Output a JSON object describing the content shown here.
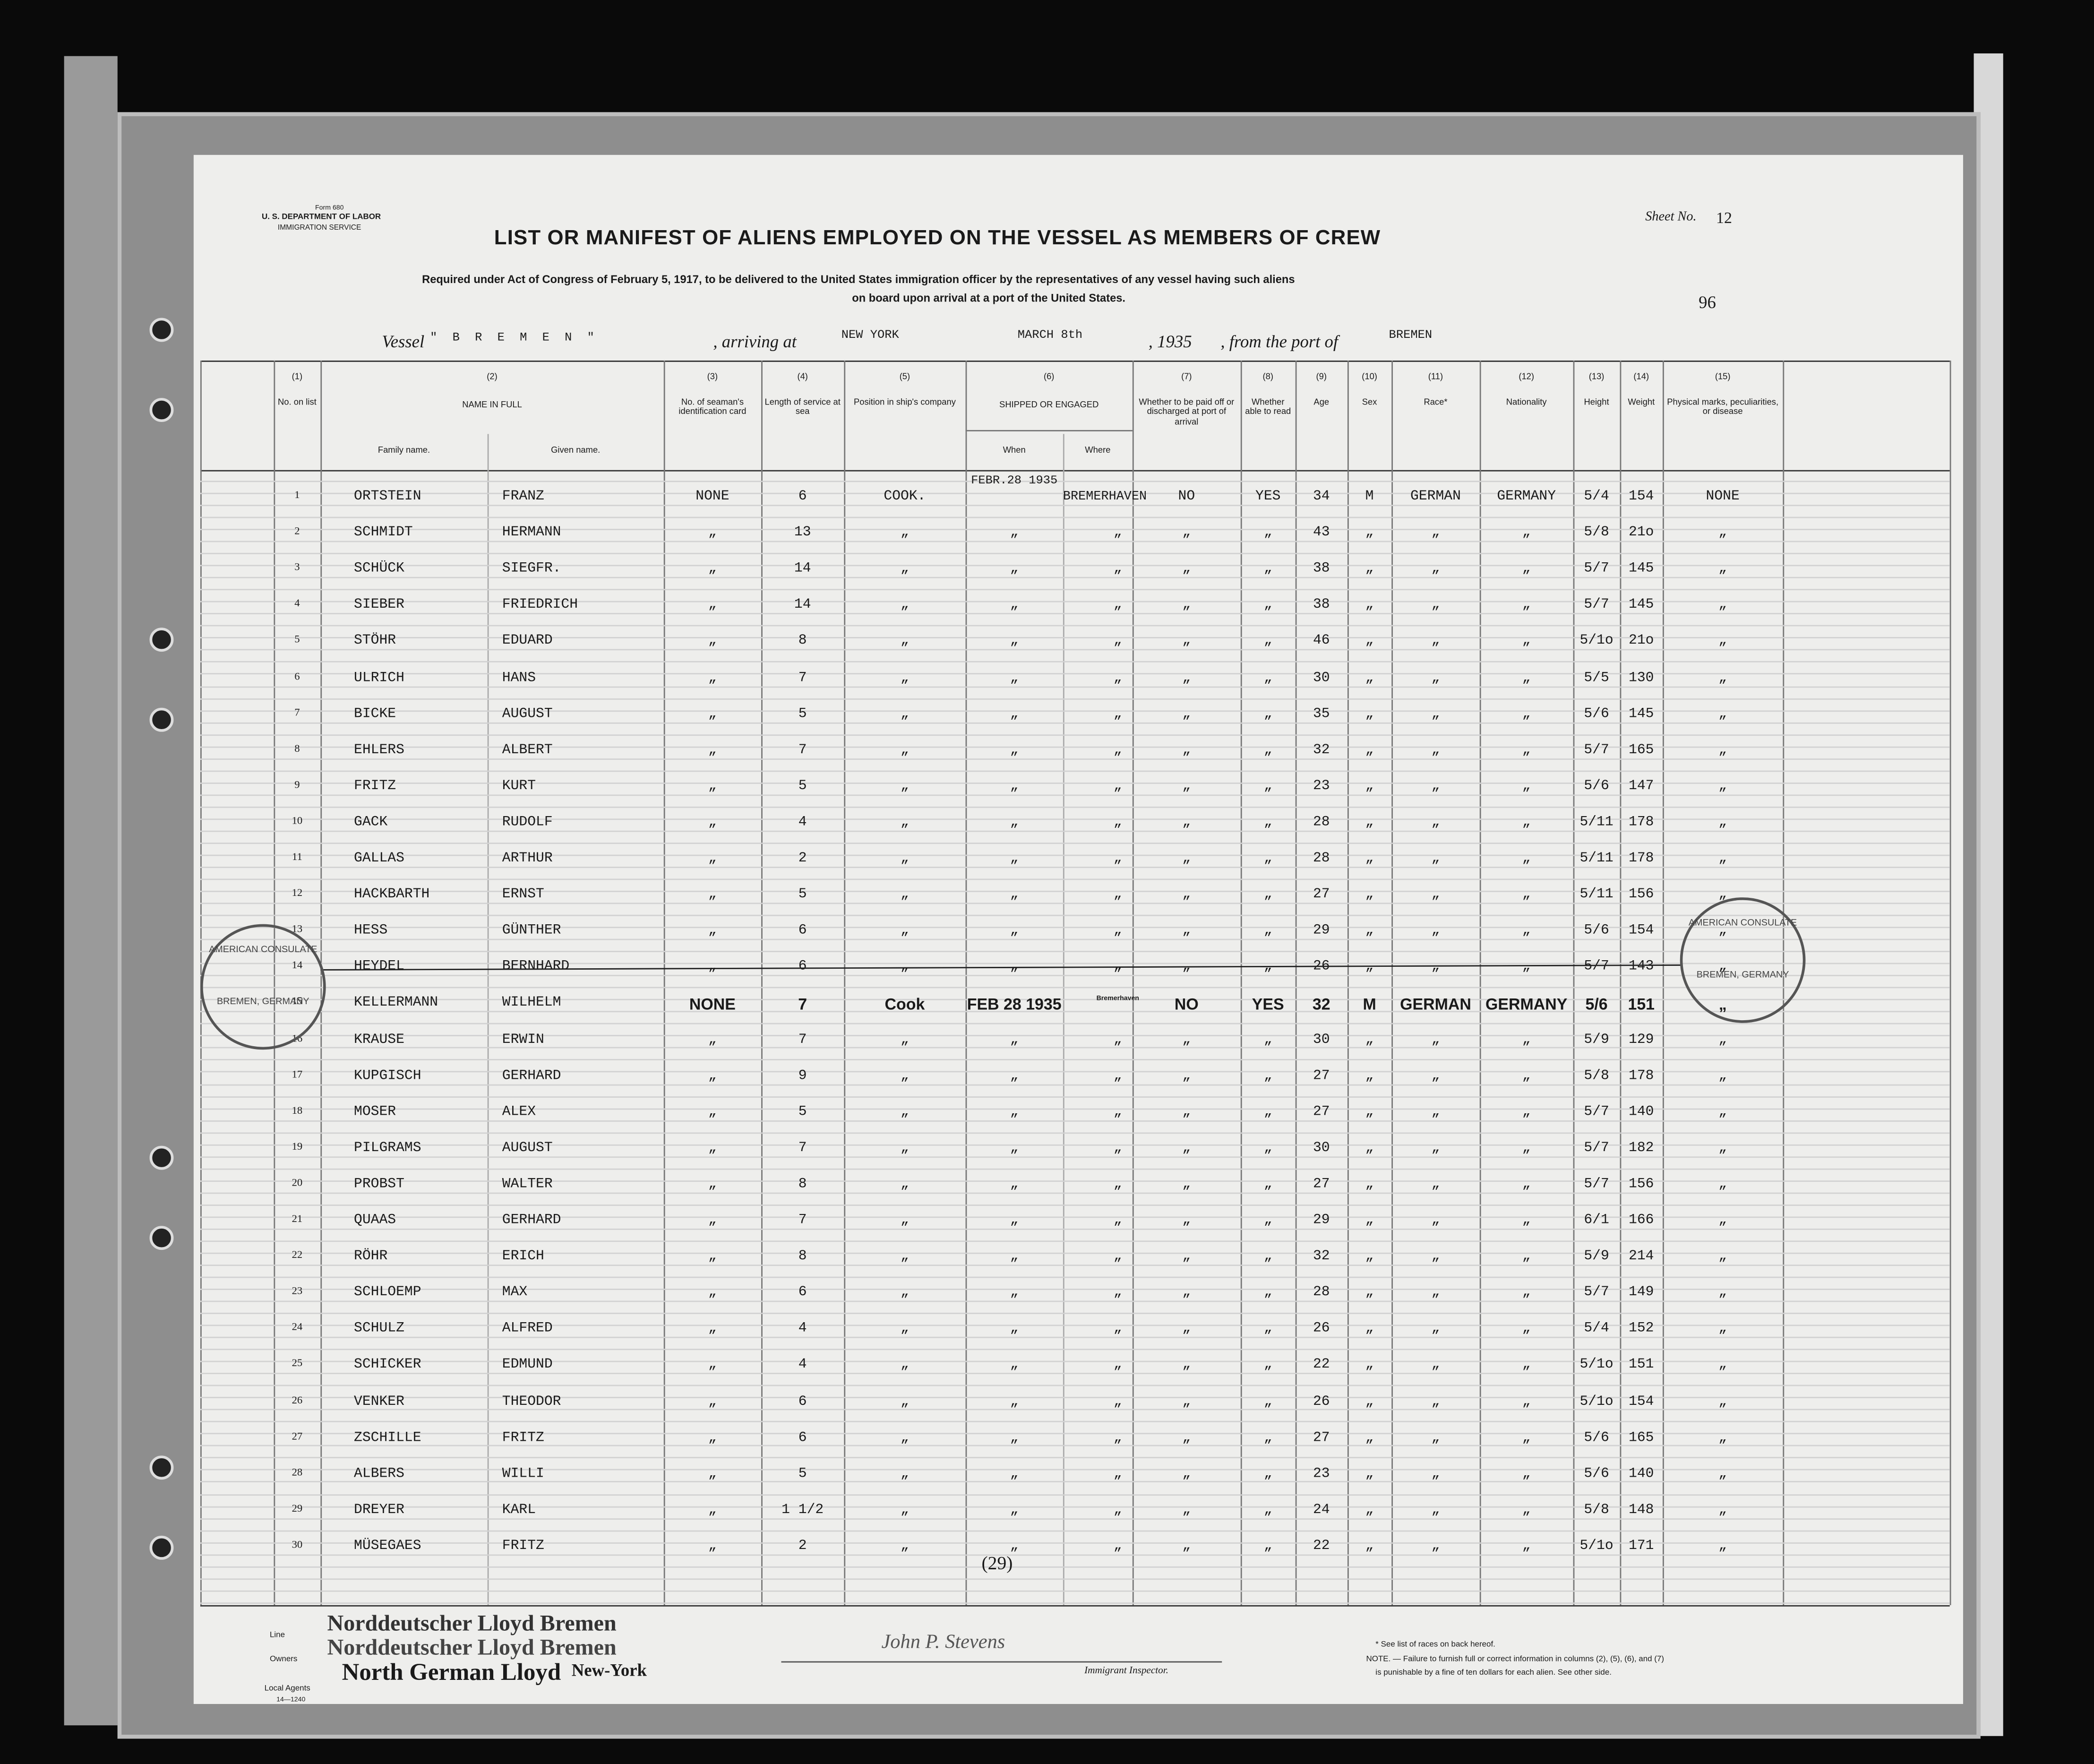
{
  "header": {
    "form": "Form 680",
    "department": "U. S. DEPARTMENT OF LABOR",
    "service": "IMMIGRATION SERVICE",
    "title": "LIST OR MANIFEST OF ALIENS EMPLOYED ON THE VESSEL AS MEMBERS OF CREW",
    "subtitle_1": "Required under Act of Congress of February 5, 1917, to be delivered to the United States immigration officer by the representatives of any vessel having such aliens",
    "subtitle_2": "on board upon arrival at a port of the United States.",
    "sheet_label": "Sheet No.",
    "sheet_number": "12",
    "page_mark": "96"
  },
  "vessel": {
    "vessel_label": "Vessel",
    "vessel": "\" B R E M E N \"",
    "arriving_label": ", arriving at",
    "port": "NEW YORK",
    "date": "MARCH  8th",
    "year": ", 1935",
    "from_label": ", from the port of",
    "from_port": "BREMEN"
  },
  "columns": [
    {
      "number": "(1)",
      "label": "No. on list"
    },
    {
      "number": "(2)",
      "label": "NAME IN FULL",
      "sub": [
        "Family name.",
        "Given name."
      ]
    },
    {
      "number": "(3)",
      "label": "No. of seaman's identification card"
    },
    {
      "number": "(4)",
      "label": "Length of service at sea"
    },
    {
      "number": "(5)",
      "label": "Position in ship's company"
    },
    {
      "number": "(6)",
      "label": "SHIPPED OR ENGAGED",
      "sub": [
        "When",
        "Where"
      ]
    },
    {
      "number": "(7)",
      "label": "Whether to be paid off or discharged at port of arrival"
    },
    {
      "number": "(8)",
      "label": "Whether able to read"
    },
    {
      "number": "(9)",
      "label": "Age"
    },
    {
      "number": "(10)",
      "label": "Sex"
    },
    {
      "number": "(11)",
      "label": "Race*"
    },
    {
      "number": "(12)",
      "label": "Nationality"
    },
    {
      "number": "(13)",
      "label": "Height"
    },
    {
      "number": "(14)",
      "label": "Weight"
    },
    {
      "number": "(15)",
      "label": "Physical marks, peculiarities, or disease"
    }
  ],
  "table": {
    "rows": [
      [
        "1",
        "ORTSTEIN",
        "FRANZ",
        "NONE",
        "6",
        "COOK.",
        "FEBR.28 1935",
        "BREMERHAVEN",
        "NO",
        "YES",
        "34",
        "M",
        "GERMAN",
        "GERMANY",
        "5/4",
        "154",
        "NONE"
      ],
      [
        "2",
        "SCHMIDT",
        "HERMANN",
        "„",
        "13",
        "„",
        "„",
        "„",
        "„",
        "„",
        "43",
        "„",
        "„",
        "„",
        "5/8",
        "21o",
        "„"
      ],
      [
        "3",
        "SCHÜCK",
        "SIEGFR.",
        "„",
        "14",
        "„",
        "„",
        "„",
        "„",
        "„",
        "38",
        "„",
        "„",
        "„",
        "5/7",
        "145",
        "„"
      ],
      [
        "4",
        "SIEBER",
        "FRIEDRICH",
        "„",
        "14",
        "„",
        "„",
        "„",
        "„",
        "„",
        "38",
        "„",
        "„",
        "„",
        "5/7",
        "145",
        "„"
      ],
      [
        "5",
        "STÖHR",
        "EDUARD",
        "„",
        "8",
        "„",
        "„",
        "„",
        "„",
        "„",
        "46",
        "„",
        "„",
        "„",
        "5/1o",
        "21o",
        "„"
      ],
      [
        "6",
        "ULRICH",
        "HANS",
        "„",
        "7",
        "„",
        "„",
        "„",
        "„",
        "„",
        "30",
        "„",
        "„",
        "„",
        "5/5",
        "130",
        "„"
      ],
      [
        "7",
        "BICKE",
        "AUGUST",
        "„",
        "5",
        "„",
        "„",
        "„",
        "„",
        "„",
        "35",
        "„",
        "„",
        "„",
        "5/6",
        "145",
        "„"
      ],
      [
        "8",
        "EHLERS",
        "ALBERT",
        "„",
        "7",
        "„",
        "„",
        "„",
        "„",
        "„",
        "32",
        "„",
        "„",
        "„",
        "5/7",
        "165",
        "„"
      ],
      [
        "9",
        "FRITZ",
        "KURT",
        "„",
        "5",
        "„",
        "„",
        "„",
        "„",
        "„",
        "23",
        "„",
        "„",
        "„",
        "5/6",
        "147",
        "„"
      ],
      [
        "10",
        "GACK",
        "RUDOLF",
        "„",
        "4",
        "„",
        "„",
        "„",
        "„",
        "„",
        "28",
        "„",
        "„",
        "„",
        "5/11",
        "178",
        "„"
      ],
      [
        "11",
        "GALLAS",
        "ARTHUR",
        "„",
        "2",
        "„",
        "„",
        "„",
        "„",
        "„",
        "28",
        "„",
        "„",
        "„",
        "5/11",
        "178",
        "„"
      ],
      [
        "12",
        "HACKBARTH",
        "ERNST",
        "„",
        "5",
        "„",
        "„",
        "„",
        "„",
        "„",
        "27",
        "„",
        "„",
        "„",
        "5/11",
        "156",
        "„"
      ],
      [
        "13",
        "HESS",
        "GÜNTHER",
        "„",
        "6",
        "„",
        "„",
        "„",
        "„",
        "„",
        "29",
        "„",
        "„",
        "„",
        "5/6",
        "154",
        "„"
      ],
      [
        "14",
        "HEYDEL",
        "BERNHARD",
        "„",
        "6",
        "„",
        "„",
        "„",
        "„",
        "„",
        "26",
        "„",
        "„",
        "„",
        "5/7",
        "143",
        "„"
      ],
      [
        "15",
        "KELLERMANN",
        "WILHELM",
        "NONE",
        "7",
        "Cook",
        "FEB 28 1935",
        "Bremerhaven",
        "NO",
        "YES",
        "32",
        "M",
        "GERMAN",
        "GERMANY",
        "5/6",
        "151",
        "„"
      ],
      [
        "16",
        "KRAUSE",
        "ERWIN",
        "„",
        "7",
        "„",
        "„",
        "„",
        "„",
        "„",
        "30",
        "„",
        "„",
        "„",
        "5/9",
        "129",
        "„"
      ],
      [
        "17",
        "KUPGISCH",
        "GERHARD",
        "„",
        "9",
        "„",
        "„",
        "„",
        "„",
        "„",
        "27",
        "„",
        "„",
        "„",
        "5/8",
        "178",
        "„"
      ],
      [
        "18",
        "MOSER",
        "ALEX",
        "„",
        "5",
        "„",
        "„",
        "„",
        "„",
        "„",
        "27",
        "„",
        "„",
        "„",
        "5/7",
        "140",
        "„"
      ],
      [
        "19",
        "PILGRAMS",
        "AUGUST",
        "„",
        "7",
        "„",
        "„",
        "„",
        "„",
        "„",
        "30",
        "„",
        "„",
        "„",
        "5/7",
        "182",
        "„"
      ],
      [
        "20",
        "PROBST",
        "WALTER",
        "„",
        "8",
        "„",
        "„",
        "„",
        "„",
        "„",
        "27",
        "„",
        "„",
        "„",
        "5/7",
        "156",
        "„"
      ],
      [
        "21",
        "QUAAS",
        "GERHARD",
        "„",
        "7",
        "„",
        "„",
        "„",
        "„",
        "„",
        "29",
        "„",
        "„",
        "„",
        "6/1",
        "166",
        "„"
      ],
      [
        "22",
        "RÖHR",
        "ERICH",
        "„",
        "8",
        "„",
        "„",
        "„",
        "„",
        "„",
        "32",
        "„",
        "„",
        "„",
        "5/9",
        "214",
        "„"
      ],
      [
        "23",
        "SCHLOEMP",
        "MAX",
        "„",
        "6",
        "„",
        "„",
        "„",
        "„",
        "„",
        "28",
        "„",
        "„",
        "„",
        "5/7",
        "149",
        "„"
      ],
      [
        "24",
        "SCHULZ",
        "ALFRED",
        "„",
        "4",
        "„",
        "„",
        "„",
        "„",
        "„",
        "26",
        "„",
        "„",
        "„",
        "5/4",
        "152",
        "„"
      ],
      [
        "25",
        "SCHICKER",
        "EDMUND",
        "„",
        "4",
        "„",
        "„",
        "„",
        "„",
        "„",
        "22",
        "„",
        "„",
        "„",
        "5/1o",
        "151",
        "„"
      ],
      [
        "26",
        "VENKER",
        "THEODOR",
        "„",
        "6",
        "„",
        "„",
        "„",
        "„",
        "„",
        "26",
        "„",
        "„",
        "„",
        "5/1o",
        "154",
        "„"
      ],
      [
        "27",
        "ZSCHILLE",
        "FRITZ",
        "„",
        "6",
        "„",
        "„",
        "„",
        "„",
        "„",
        "27",
        "„",
        "„",
        "„",
        "5/6",
        "165",
        "„"
      ],
      [
        "28",
        "ALBERS",
        "WILLI",
        "„",
        "5",
        "„",
        "„",
        "„",
        "„",
        "„",
        "23",
        "„",
        "„",
        "„",
        "5/6",
        "140",
        "„"
      ],
      [
        "29",
        "DREYER",
        "KARL",
        "„",
        "1 1/2",
        "„",
        "„",
        "„",
        "„",
        "„",
        "24",
        "„",
        "„",
        "„",
        "5/8",
        "148",
        "„"
      ],
      [
        "30",
        "MÜSEGAES",
        "FRITZ",
        "„",
        "2",
        "„",
        "„",
        "„",
        "„",
        "„",
        "22",
        "„",
        "„",
        "„",
        "5/1o",
        "171",
        "„"
      ]
    ],
    "count": "(29)"
  },
  "stamps": [
    {
      "top": "AMERICAN CONSULATE",
      "bottom": "BREMEN, GERMANY"
    },
    {
      "top": "AMERICAN CONSULATE",
      "bottom": "BREMEN, GERMANY"
    }
  ],
  "footer": {
    "line_label": "Line",
    "line": "Norddeutscher Lloyd Bremen",
    "owners_label": "Owners",
    "owners": "Norddeutscher Lloyd Bremen",
    "agents_label": "Local Agents",
    "agents": "North German Lloyd",
    "agents_city": "New-York",
    "form_code": "14—1240",
    "signature": "John P. Stevens",
    "inspector": "Immigrant Inspector.",
    "note_1": "* See list of races on back hereof.",
    "note_2": "NOTE. — Failure to furnish full or correct information in columns (2), (5), (6), and (7)",
    "note_3": "is punishable by a fine of ten dollars for each alien.  See other side."
  }
}
